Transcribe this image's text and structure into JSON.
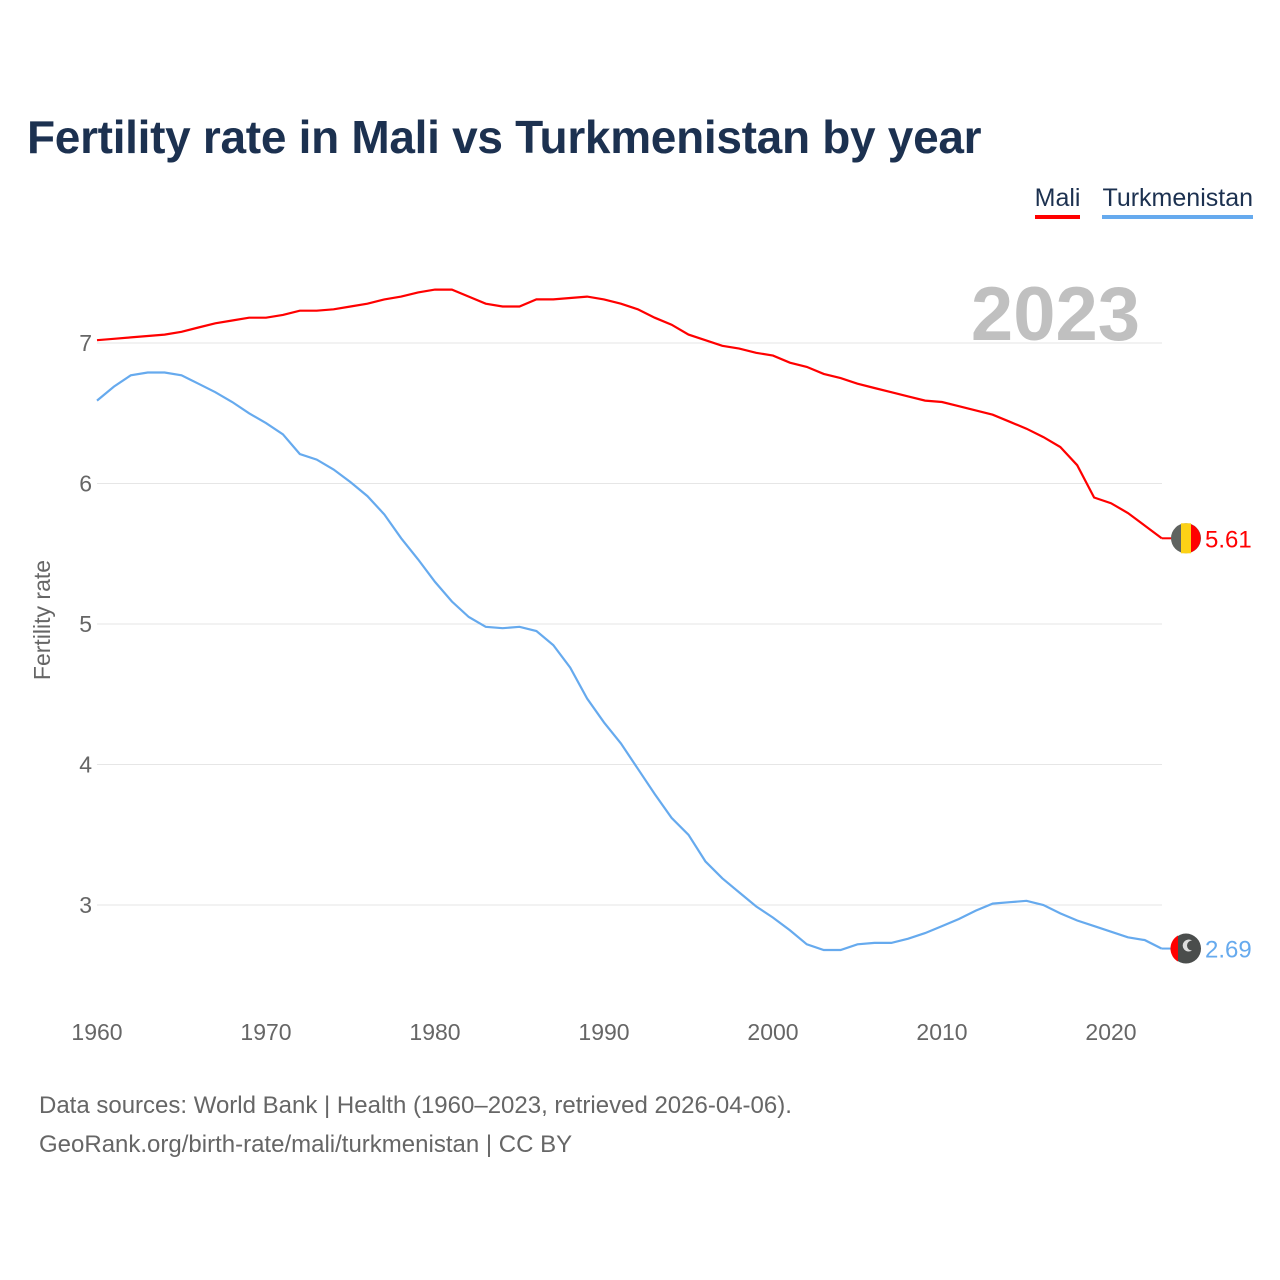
{
  "chart_data": {
    "type": "line",
    "title": "Fertility rate in Mali vs Turkmenistan by year",
    "xlabel": "",
    "ylabel": "Fertility rate",
    "xlim": [
      1960,
      2023
    ],
    "ylim": [
      2.5,
      7.4
    ],
    "x_ticks": [
      1960,
      1970,
      1980,
      1990,
      2000,
      2010,
      2020
    ],
    "y_ticks": [
      3,
      4,
      5,
      6,
      7
    ],
    "grid": true,
    "legend_position": "top-right",
    "year_label": "2023",
    "x": [
      1960,
      1961,
      1962,
      1963,
      1964,
      1965,
      1966,
      1967,
      1968,
      1969,
      1970,
      1971,
      1972,
      1973,
      1974,
      1975,
      1976,
      1977,
      1978,
      1979,
      1980,
      1981,
      1982,
      1983,
      1984,
      1985,
      1986,
      1987,
      1988,
      1989,
      1990,
      1991,
      1992,
      1993,
      1994,
      1995,
      1996,
      1997,
      1998,
      1999,
      2000,
      2001,
      2002,
      2003,
      2004,
      2005,
      2006,
      2007,
      2008,
      2009,
      2010,
      2011,
      2012,
      2013,
      2014,
      2015,
      2016,
      2017,
      2018,
      2019,
      2020,
      2021,
      2022,
      2023
    ],
    "series": [
      {
        "name": "Mali",
        "color": "#ff0000",
        "end_label": "5.61",
        "values": [
          7.02,
          7.03,
          7.04,
          7.05,
          7.06,
          7.08,
          7.11,
          7.14,
          7.16,
          7.18,
          7.18,
          7.2,
          7.23,
          7.23,
          7.24,
          7.26,
          7.28,
          7.31,
          7.33,
          7.36,
          7.38,
          7.38,
          7.33,
          7.28,
          7.26,
          7.26,
          7.31,
          7.31,
          7.32,
          7.33,
          7.31,
          7.28,
          7.24,
          7.18,
          7.13,
          7.06,
          7.02,
          6.98,
          6.96,
          6.93,
          6.91,
          6.86,
          6.83,
          6.78,
          6.75,
          6.71,
          6.68,
          6.65,
          6.62,
          6.59,
          6.58,
          6.55,
          6.52,
          6.49,
          6.44,
          6.39,
          6.33,
          6.26,
          6.13,
          5.9,
          5.86,
          5.79,
          5.7,
          5.61
        ]
      },
      {
        "name": "Turkmenistan",
        "color": "#66aaee",
        "end_label": "2.69",
        "values": [
          6.59,
          6.69,
          6.77,
          6.79,
          6.79,
          6.77,
          6.71,
          6.65,
          6.58,
          6.5,
          6.43,
          6.35,
          6.21,
          6.17,
          6.1,
          6.01,
          5.91,
          5.78,
          5.61,
          5.46,
          5.3,
          5.16,
          5.05,
          4.98,
          4.97,
          4.98,
          4.95,
          4.85,
          4.69,
          4.47,
          4.3,
          4.15,
          3.97,
          3.79,
          3.62,
          3.5,
          3.31,
          3.19,
          3.09,
          2.99,
          2.91,
          2.82,
          2.72,
          2.68,
          2.68,
          2.72,
          2.73,
          2.73,
          2.76,
          2.8,
          2.85,
          2.9,
          2.96,
          3.01,
          3.02,
          3.03,
          3.0,
          2.94,
          2.89,
          2.85,
          2.81,
          2.77,
          2.75,
          2.69
        ]
      }
    ]
  },
  "footer": {
    "line1": "Data sources: World Bank | Health (1960–2023, retrieved 2026-04-06).",
    "line2": "GeoRank.org/birth-rate/mali/turkmenistan | CC BY"
  }
}
